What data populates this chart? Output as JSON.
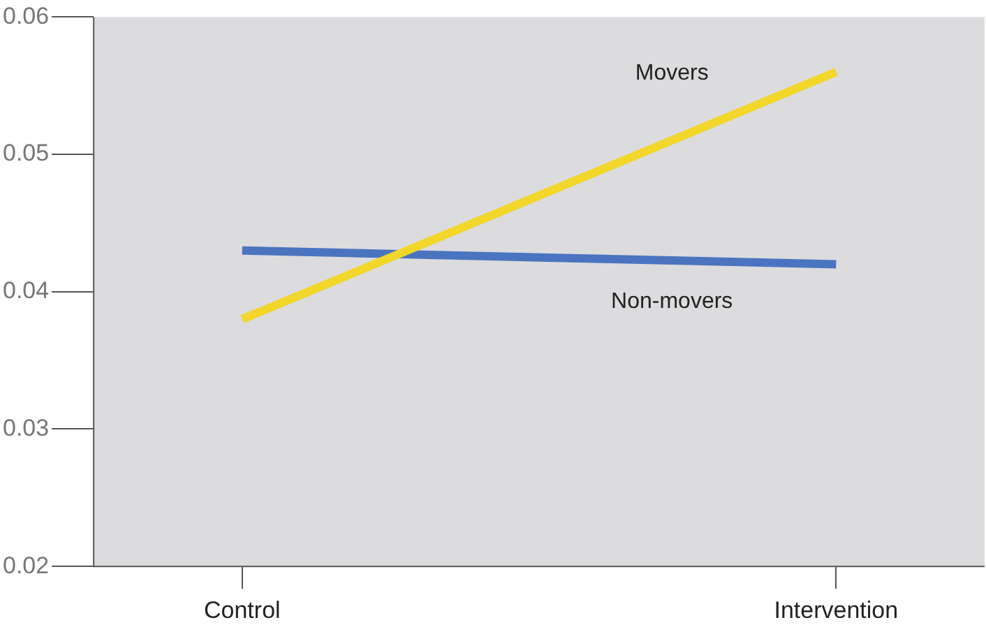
{
  "chart_data": {
    "type": "line",
    "categories": [
      "Control",
      "Intervention"
    ],
    "series": [
      {
        "name": "Movers",
        "color": "#f2d629",
        "values": [
          0.038,
          0.056
        ]
      },
      {
        "name": "Non-movers",
        "color": "#4a74c0",
        "values": [
          0.043,
          0.042
        ]
      }
    ],
    "ylim": [
      0.02,
      0.06
    ],
    "yticks": [
      0.02,
      0.03,
      0.04,
      0.05,
      0.06
    ],
    "grid": false,
    "legend": false,
    "marker": "none",
    "line_style": "solid"
  }
}
